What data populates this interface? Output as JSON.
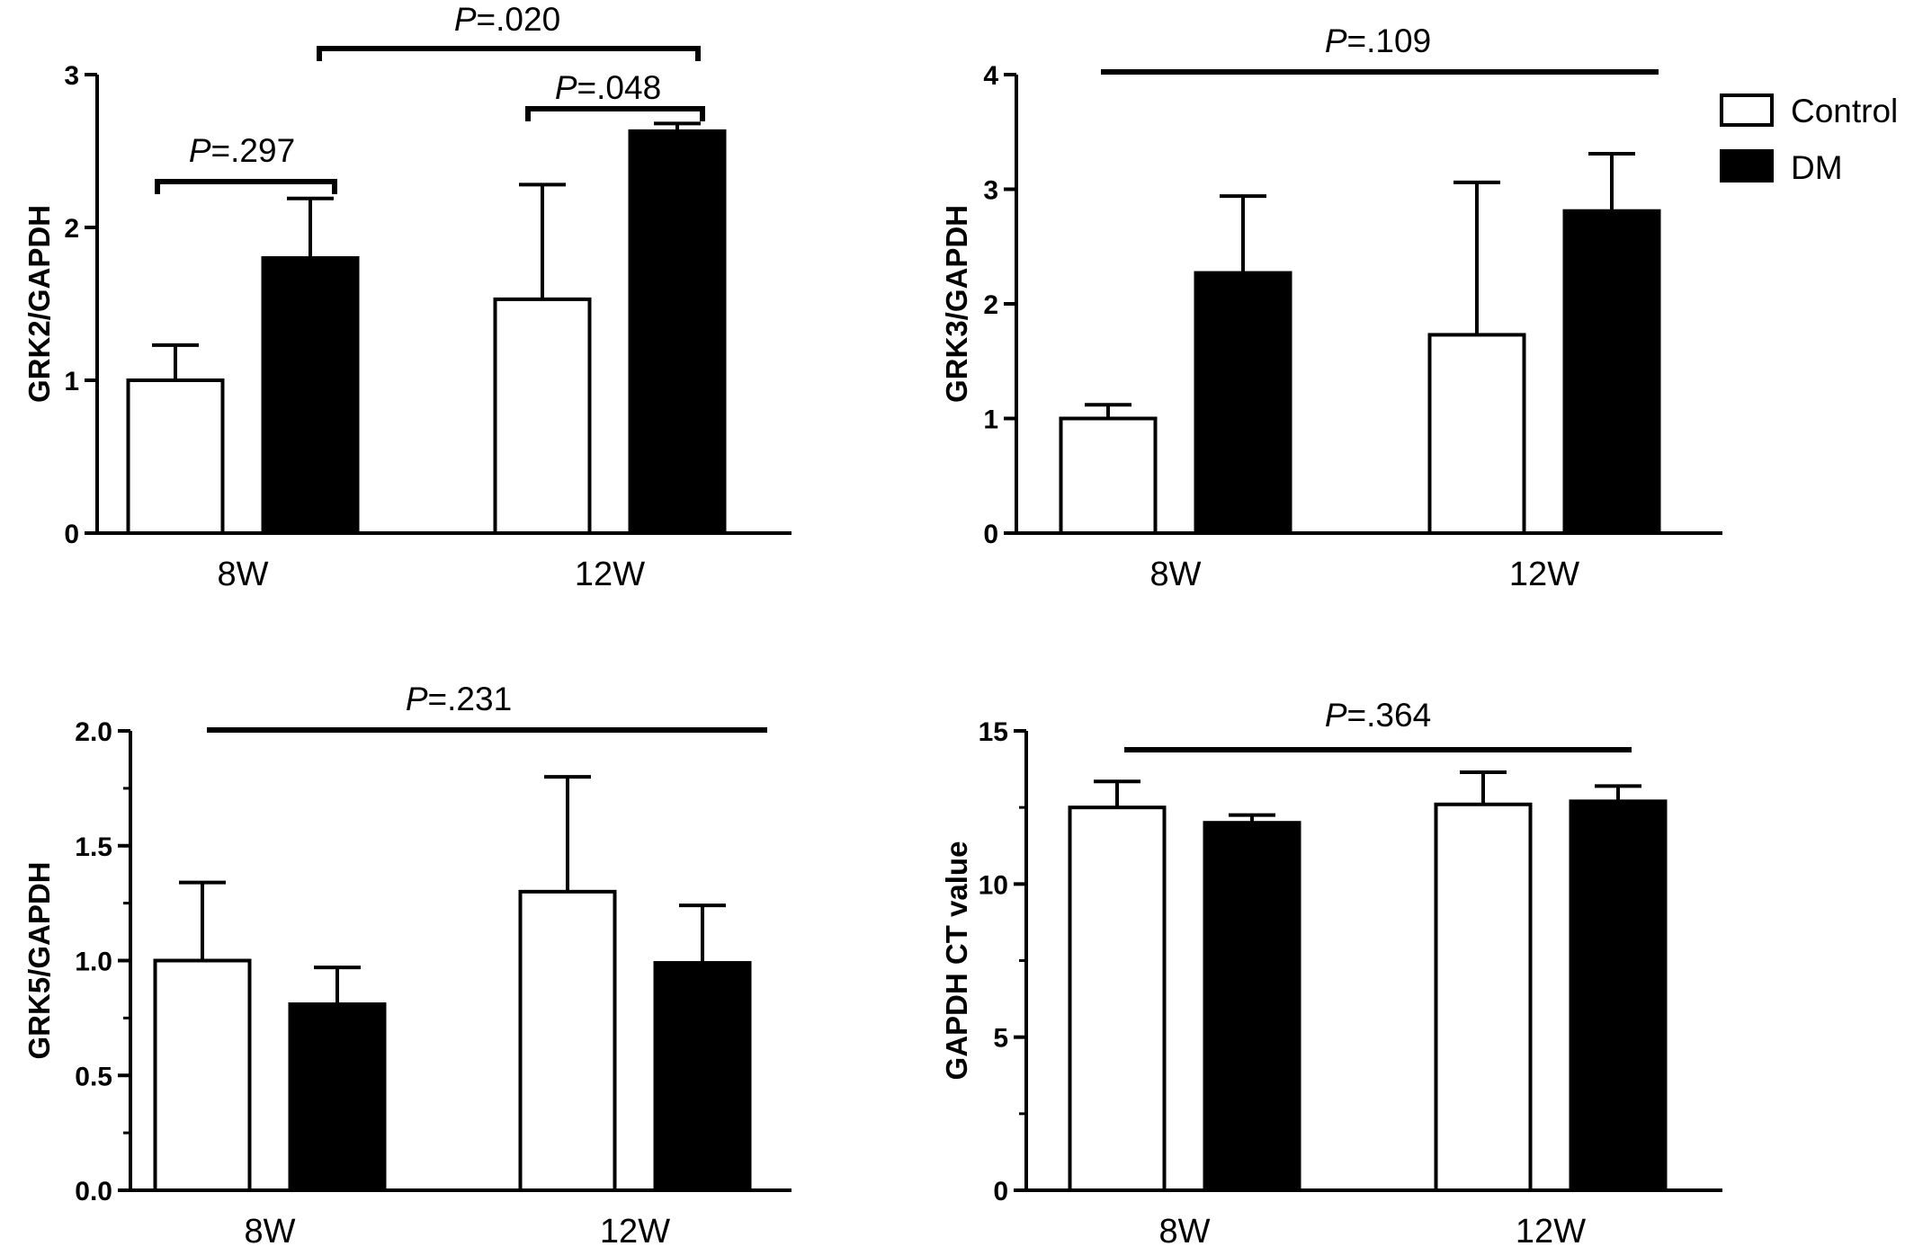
{
  "legend": {
    "items": [
      {
        "label": "Control",
        "fill": "#ffffff"
      },
      {
        "label": "DM",
        "fill": "#000000"
      }
    ]
  },
  "chart_data": [
    {
      "type": "bar",
      "categories": [
        "8W",
        "12W"
      ],
      "ylabel": "GRK2/GAPDH",
      "ylim": [
        0,
        3
      ],
      "yticks": [
        {
          "value": 0,
          "label": "0"
        },
        {
          "value": 1,
          "label": "1"
        },
        {
          "value": 2,
          "label": "2"
        },
        {
          "value": 3,
          "label": "3"
        }
      ],
      "series": [
        {
          "name": "Control",
          "values": [
            1.0,
            1.53
          ],
          "error": [
            0.23,
            0.75
          ]
        },
        {
          "name": "DM",
          "values": [
            1.8,
            2.63
          ],
          "error": [
            0.39,
            0.05
          ]
        }
      ],
      "annotations": [
        {
          "p_label": "P",
          "p_value": "=.297"
        },
        {
          "p_label": "P",
          "p_value": "=.048"
        },
        {
          "p_label": "P",
          "p_value": "=.020"
        }
      ]
    },
    {
      "type": "bar",
      "categories": [
        "8W",
        "12W"
      ],
      "ylabel": "GRK3/GAPDH",
      "ylim": [
        0,
        4
      ],
      "yticks": [
        {
          "value": 0,
          "label": "0"
        },
        {
          "value": 1,
          "label": "1"
        },
        {
          "value": 2,
          "label": "2"
        },
        {
          "value": 3,
          "label": "3"
        },
        {
          "value": 4,
          "label": "4"
        }
      ],
      "series": [
        {
          "name": "Control",
          "values": [
            1.0,
            1.73
          ],
          "error": [
            0.12,
            1.33
          ]
        },
        {
          "name": "DM",
          "values": [
            2.27,
            2.81
          ],
          "error": [
            0.67,
            0.5
          ]
        }
      ],
      "annotations": [
        {
          "p_label": "P",
          "p_value": "=.109"
        }
      ]
    },
    {
      "type": "bar",
      "categories": [
        "8W",
        "12W"
      ],
      "ylabel": "GRK5/GAPDH",
      "ylim": [
        0,
        2
      ],
      "yticks": [
        {
          "value": 0,
          "label": "0.0"
        },
        {
          "value": 0.5,
          "label": "0.5"
        },
        {
          "value": 1,
          "label": "1.0"
        },
        {
          "value": 1.5,
          "label": "1.5"
        },
        {
          "value": 2,
          "label": "2.0"
        }
      ],
      "series": [
        {
          "name": "Control",
          "values": [
            1.0,
            1.3
          ],
          "error": [
            0.34,
            0.5
          ]
        },
        {
          "name": "DM",
          "values": [
            0.81,
            0.99
          ],
          "error": [
            0.16,
            0.25
          ]
        }
      ],
      "annotations": [
        {
          "p_label": "P",
          "p_value": "=.231"
        }
      ]
    },
    {
      "type": "bar",
      "categories": [
        "8W",
        "12W"
      ],
      "ylabel": "GAPDH CT value",
      "ylim": [
        0,
        15
      ],
      "yticks": [
        {
          "value": 0,
          "label": "0"
        },
        {
          "value": 5,
          "label": "5"
        },
        {
          "value": 10,
          "label": "10"
        },
        {
          "value": 15,
          "label": "15"
        }
      ],
      "series": [
        {
          "name": "Control",
          "values": [
            12.5,
            12.6
          ],
          "error": [
            0.85,
            1.05
          ]
        },
        {
          "name": "DM",
          "values": [
            12.0,
            12.7
          ],
          "error": [
            0.25,
            0.5
          ]
        }
      ],
      "annotations": [
        {
          "p_label": "P",
          "p_value": "=.364"
        }
      ]
    }
  ]
}
